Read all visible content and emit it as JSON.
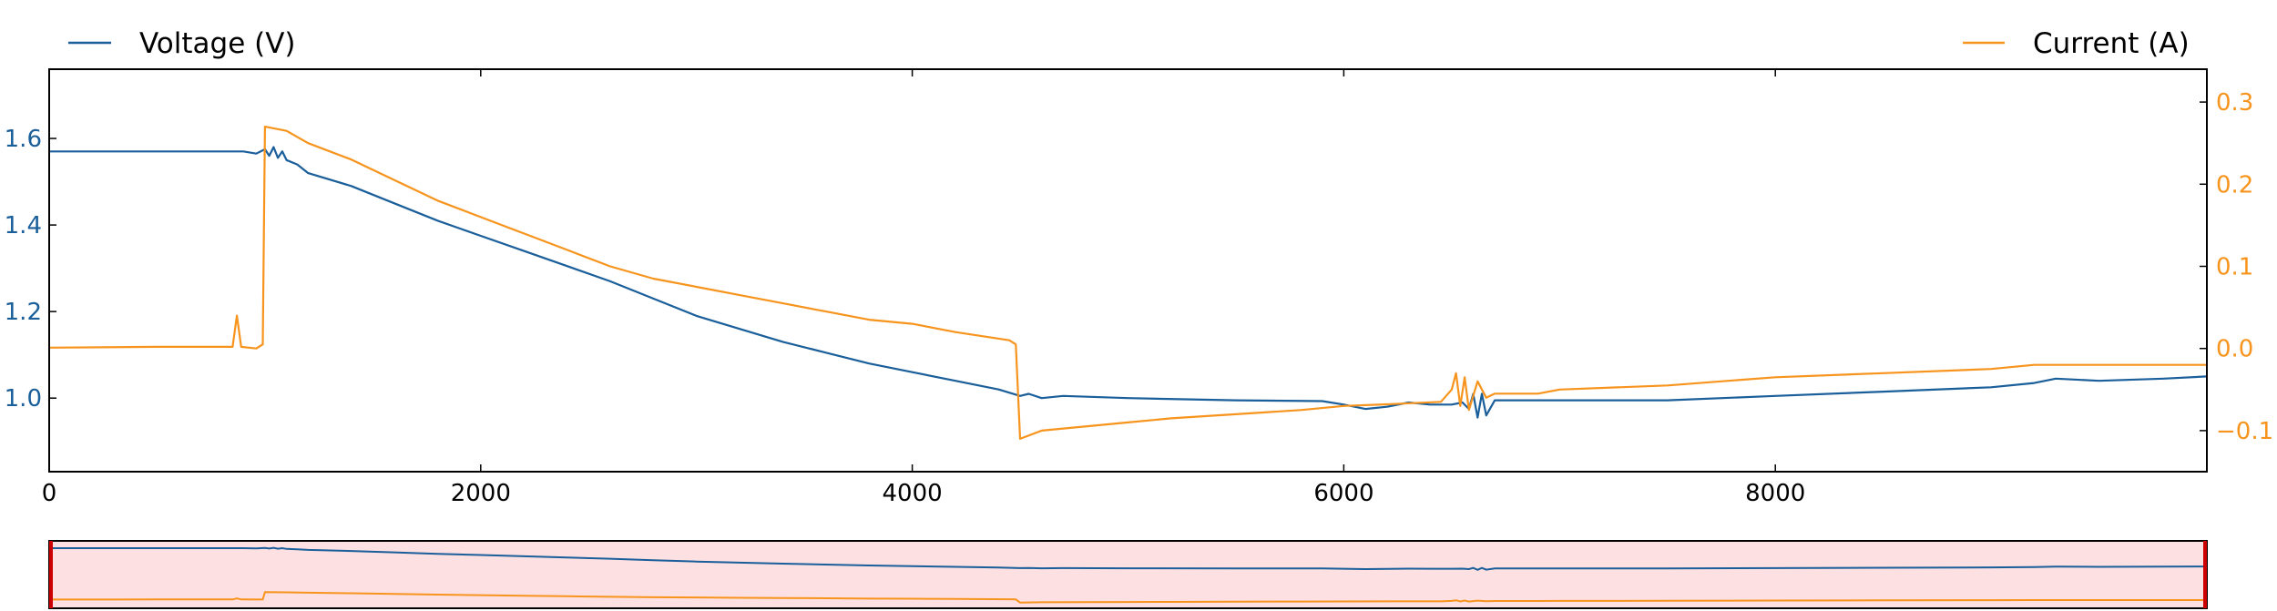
{
  "chart_data": {
    "type": "line",
    "legend": {
      "left": "Voltage (V)",
      "right": "Current (A)",
      "placement": "top"
    },
    "colors": {
      "voltage": "#1a5e9a",
      "current": "#f7941d",
      "navigator_fill": "#fde0e2",
      "navigator_border": "#cc0000",
      "axis": "#000000"
    },
    "x": {
      "min": 0,
      "max": 10000,
      "ticks": [
        0,
        2000,
        4000,
        6000,
        8000
      ],
      "tick_labels": [
        "0",
        "2000",
        "4000",
        "6000",
        "8000"
      ]
    },
    "y_left": {
      "min": 0.83,
      "max": 1.76,
      "ticks": [
        1.0,
        1.2,
        1.4,
        1.6
      ],
      "tick_labels": [
        "1.0",
        "1.2",
        "1.4",
        "1.6"
      ]
    },
    "y_right": {
      "min": -0.15,
      "max": 0.34,
      "ticks": [
        -0.1,
        0.0,
        0.1,
        0.2,
        0.3
      ],
      "tick_labels": [
        "−0.1",
        "0.0",
        "0.1",
        "0.2",
        "0.3"
      ]
    },
    "grid": false,
    "series": [
      {
        "name": "Voltage (V)",
        "axis": "left",
        "points": [
          [
            0,
            1.57
          ],
          [
            500,
            1.57
          ],
          [
            900,
            1.57
          ],
          [
            960,
            1.565
          ],
          [
            1000,
            1.575
          ],
          [
            1020,
            1.56
          ],
          [
            1040,
            1.58
          ],
          [
            1060,
            1.555
          ],
          [
            1080,
            1.57
          ],
          [
            1100,
            1.55
          ],
          [
            1150,
            1.54
          ],
          [
            1200,
            1.52
          ],
          [
            1400,
            1.49
          ],
          [
            1600,
            1.45
          ],
          [
            1800,
            1.41
          ],
          [
            2000,
            1.375
          ],
          [
            2200,
            1.34
          ],
          [
            2400,
            1.305
          ],
          [
            2600,
            1.27
          ],
          [
            2800,
            1.23
          ],
          [
            3000,
            1.19
          ],
          [
            3200,
            1.16
          ],
          [
            3400,
            1.13
          ],
          [
            3600,
            1.105
          ],
          [
            3800,
            1.08
          ],
          [
            4000,
            1.06
          ],
          [
            4200,
            1.04
          ],
          [
            4400,
            1.02
          ],
          [
            4500,
            1.005
          ],
          [
            4540,
            1.01
          ],
          [
            4600,
            1.0
          ],
          [
            4700,
            1.005
          ],
          [
            5000,
            1.0
          ],
          [
            5500,
            0.995
          ],
          [
            5900,
            0.993
          ],
          [
            6000,
            0.985
          ],
          [
            6100,
            0.975
          ],
          [
            6200,
            0.98
          ],
          [
            6300,
            0.99
          ],
          [
            6400,
            0.985
          ],
          [
            6500,
            0.985
          ],
          [
            6550,
            0.99
          ],
          [
            6580,
            0.975
          ],
          [
            6600,
            1.01
          ],
          [
            6620,
            0.955
          ],
          [
            6640,
            1.01
          ],
          [
            6660,
            0.96
          ],
          [
            6700,
            0.995
          ],
          [
            6800,
            0.995
          ],
          [
            7000,
            0.995
          ],
          [
            7500,
            0.995
          ],
          [
            8000,
            1.005
          ],
          [
            8500,
            1.015
          ],
          [
            9000,
            1.025
          ],
          [
            9200,
            1.035
          ],
          [
            9300,
            1.045
          ],
          [
            9500,
            1.04
          ],
          [
            9800,
            1.045
          ],
          [
            10000,
            1.05
          ]
        ]
      },
      {
        "name": "Current (A)",
        "axis": "right",
        "points": [
          [
            0,
            0.001
          ],
          [
            500,
            0.002
          ],
          [
            850,
            0.002
          ],
          [
            870,
            0.04
          ],
          [
            890,
            0.002
          ],
          [
            960,
            0.0
          ],
          [
            990,
            0.005
          ],
          [
            1000,
            0.27
          ],
          [
            1100,
            0.265
          ],
          [
            1200,
            0.25
          ],
          [
            1400,
            0.23
          ],
          [
            1600,
            0.205
          ],
          [
            1800,
            0.18
          ],
          [
            2000,
            0.16
          ],
          [
            2200,
            0.14
          ],
          [
            2400,
            0.12
          ],
          [
            2600,
            0.1
          ],
          [
            2800,
            0.085
          ],
          [
            3000,
            0.075
          ],
          [
            3200,
            0.065
          ],
          [
            3400,
            0.055
          ],
          [
            3600,
            0.045
          ],
          [
            3800,
            0.035
          ],
          [
            4000,
            0.03
          ],
          [
            4200,
            0.02
          ],
          [
            4450,
            0.01
          ],
          [
            4480,
            0.005
          ],
          [
            4500,
            -0.11
          ],
          [
            4600,
            -0.1
          ],
          [
            4800,
            -0.095
          ],
          [
            5000,
            -0.09
          ],
          [
            5200,
            -0.085
          ],
          [
            5500,
            -0.08
          ],
          [
            5800,
            -0.075
          ],
          [
            6000,
            -0.07
          ],
          [
            6200,
            -0.068
          ],
          [
            6450,
            -0.065
          ],
          [
            6500,
            -0.05
          ],
          [
            6520,
            -0.03
          ],
          [
            6540,
            -0.07
          ],
          [
            6560,
            -0.035
          ],
          [
            6580,
            -0.075
          ],
          [
            6620,
            -0.04
          ],
          [
            6660,
            -0.06
          ],
          [
            6700,
            -0.055
          ],
          [
            6900,
            -0.055
          ],
          [
            7000,
            -0.05
          ],
          [
            7500,
            -0.045
          ],
          [
            8000,
            -0.035
          ],
          [
            8500,
            -0.03
          ],
          [
            9000,
            -0.025
          ],
          [
            9200,
            -0.02
          ],
          [
            9500,
            -0.02
          ],
          [
            10000,
            -0.02
          ]
        ]
      }
    ],
    "navigator": {
      "range": [
        0,
        10000
      ]
    }
  }
}
